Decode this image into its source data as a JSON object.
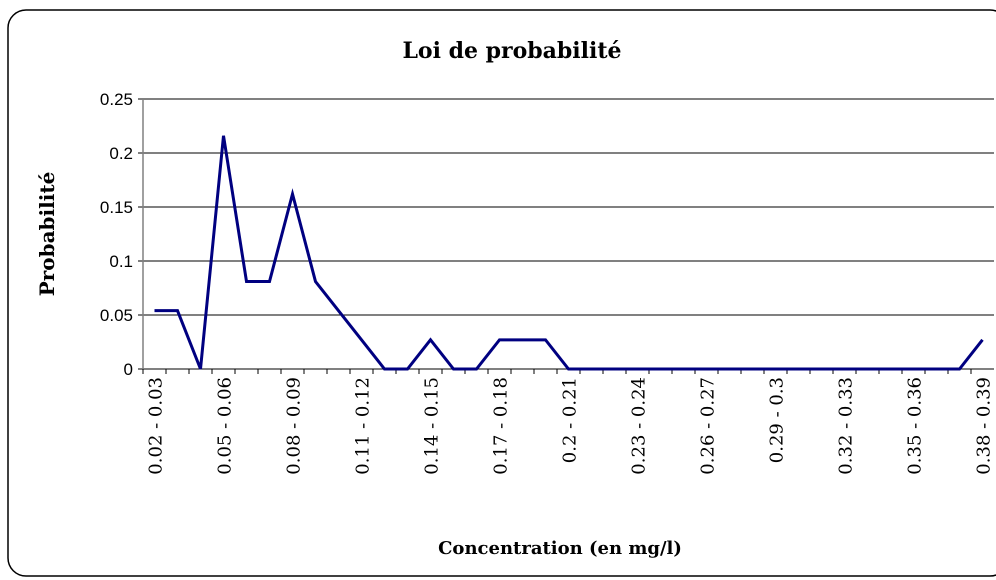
{
  "chart_data": {
    "type": "line",
    "title": "Loi de probabilité",
    "x_label": "Concentration (en mg/l)",
    "y_label": "Probabilité",
    "categories": [
      "0.02 - 0.03",
      null,
      null,
      "0.05 - 0.06",
      null,
      null,
      "0.08 - 0.09",
      null,
      null,
      "0.11 - 0.12",
      null,
      null,
      "0.14 - 0.15",
      null,
      null,
      "0.17 - 0.18",
      null,
      null,
      "0.2 - 0.21",
      null,
      null,
      "0.23 - 0.24",
      null,
      null,
      "0.26 - 0.27",
      null,
      null,
      "0.29 - 0.3",
      null,
      null,
      "0.32 - 0.33",
      null,
      null,
      "0.35 - 0.36",
      null,
      null,
      "0.38 - 0.39"
    ],
    "values": [
      0.054,
      0.054,
      0,
      0.216,
      0.081,
      0.081,
      0.162,
      0.081,
      0.054,
      0.027,
      0,
      0,
      0.027,
      0,
      0,
      0.027,
      0.027,
      0.027,
      0,
      0,
      0,
      0,
      0,
      0,
      0,
      0,
      0,
      0,
      0,
      0,
      0,
      0,
      0,
      0,
      0,
      0,
      0.027
    ],
    "color": "#000080",
    "ylim": [
      0,
      0.25
    ],
    "yticks": [
      0,
      0.05,
      0.1,
      0.15,
      0.2,
      0.25
    ],
    "grid": true
  }
}
